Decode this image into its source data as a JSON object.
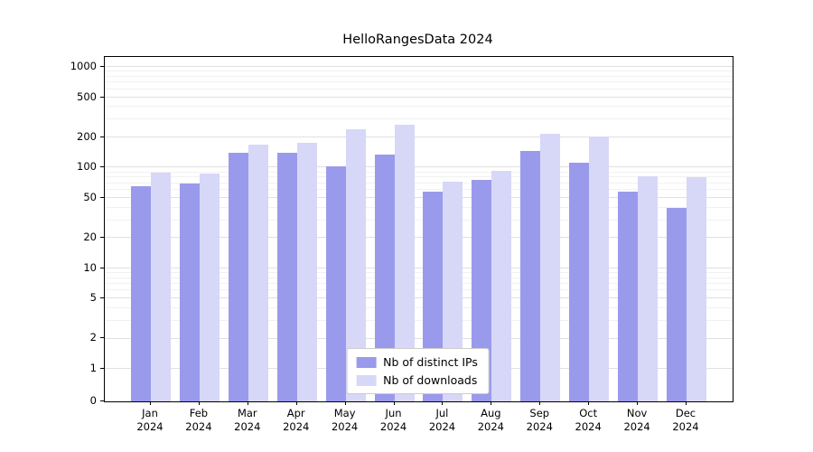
{
  "chart_data": {
    "type": "bar",
    "title": "HelloRangesData 2024",
    "categories": [
      "Jan",
      "Feb",
      "Mar",
      "Apr",
      "May",
      "Jun",
      "Jul",
      "Aug",
      "Sep",
      "Oct",
      "Nov",
      "Dec"
    ],
    "year_label": "2024",
    "series": [
      {
        "name": "Nb of distinct IPs",
        "color": "#9a9aec",
        "values": [
          65,
          70,
          140,
          140,
          103,
          135,
          58,
          75,
          145,
          112,
          58,
          40
        ]
      },
      {
        "name": "Nb of downloads",
        "color": "#d7d7f8",
        "values": [
          90,
          88,
          170,
          175,
          240,
          265,
          72,
          93,
          215,
          205,
          82,
          80
        ]
      }
    ],
    "yticks": [
      0,
      1,
      2,
      5,
      10,
      20,
      50,
      100,
      200,
      500,
      1000
    ],
    "yscale": "symlog",
    "ylim": [
      0,
      1300
    ],
    "xlabel": "",
    "ylabel": "",
    "grid": true,
    "legend_position": "lower center"
  }
}
